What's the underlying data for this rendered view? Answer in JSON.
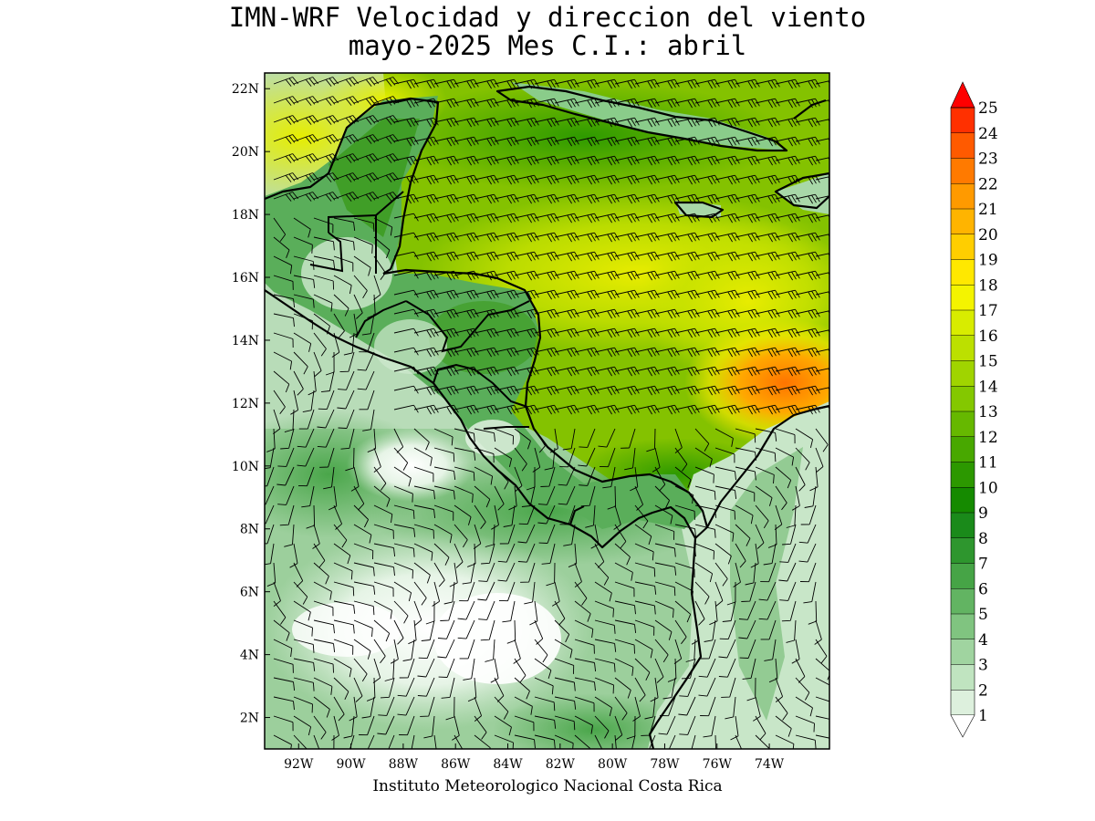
{
  "title_line1": "IMN-WRF Velocidad y direccion del viento",
  "title_line2": "mayo-2025 Mes C.I.: abril",
  "credit": "Instituto Meteorologico Nacional Costa Rica",
  "map": {
    "lon_range": [
      -93.3,
      -71.7
    ],
    "lat_range": [
      1.0,
      22.5
    ],
    "lat_ticks": [
      "22N",
      "20N",
      "18N",
      "16N",
      "14N",
      "12N",
      "10N",
      "8N",
      "6N",
      "4N",
      "2N"
    ],
    "lat_values": [
      22,
      20,
      18,
      16,
      14,
      12,
      10,
      8,
      6,
      4,
      2
    ],
    "lon_ticks": [
      "92W",
      "90W",
      "88W",
      "86W",
      "84W",
      "82W",
      "80W",
      "78W",
      "76W",
      "74W"
    ],
    "lon_values": [
      -92,
      -90,
      -88,
      -86,
      -84,
      -82,
      -80,
      -78,
      -76,
      -74
    ]
  },
  "colorbar": {
    "labels": [
      "25",
      "24",
      "23",
      "22",
      "21",
      "20",
      "19",
      "18",
      "17",
      "16",
      "15",
      "14",
      "13",
      "12",
      "11",
      "10",
      "9",
      "8",
      "7",
      "6",
      "5",
      "4",
      "3",
      "2",
      "1"
    ],
    "colors": [
      "#ff3000",
      "#ff5a00",
      "#ff7a00",
      "#ff9a00",
      "#ffb400",
      "#ffce00",
      "#ffe800",
      "#f4f400",
      "#d8ec00",
      "#bce000",
      "#a0d400",
      "#84c800",
      "#66b800",
      "#48a800",
      "#2c9800",
      "#158a00",
      "#1a8a1a",
      "#2e962e",
      "#46a446",
      "#62b462",
      "#80c480",
      "#a0d4a0",
      "#c0e4c0",
      "#ddf0dd",
      "#ffffff"
    ],
    "arrow_color": "#ff0000"
  }
}
